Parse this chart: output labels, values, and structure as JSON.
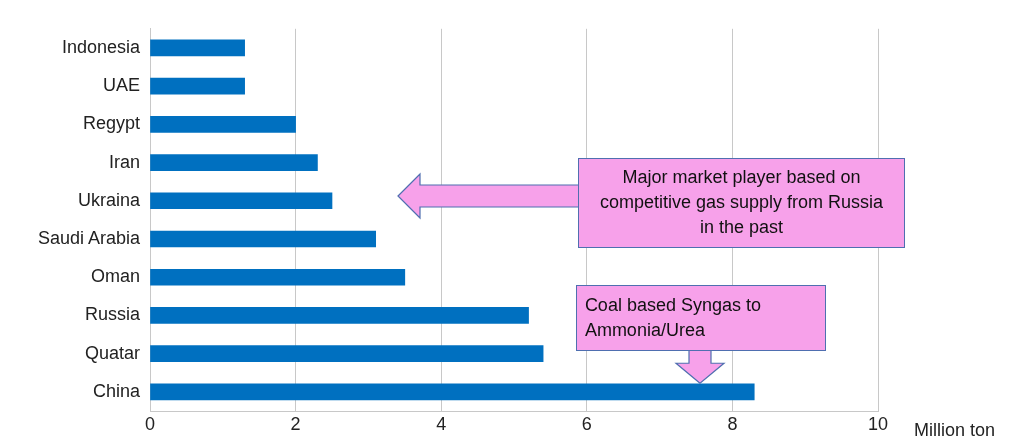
{
  "chart_data": {
    "type": "bar",
    "orientation": "horizontal",
    "xlabel": "Million ton",
    "categories": [
      "Indonesia",
      "UAE",
      "Regypt",
      "Iran",
      "Ukraina",
      "Saudi Arabia",
      "Oman",
      "Russia",
      "Quatar",
      "China"
    ],
    "values": [
      1.3,
      1.3,
      2.0,
      2.3,
      2.5,
      3.1,
      3.5,
      5.2,
      5.4,
      8.3
    ],
    "color": "#0070c0",
    "xlim": [
      0,
      10
    ],
    "xticks": [
      0,
      2,
      4,
      6,
      8,
      10
    ],
    "grid": "x",
    "legend": false,
    "annotations": [
      "Major market player based on competitive gas supply from Russia in the past",
      "Coal based Syngas to Ammonia/Urea"
    ]
  }
}
